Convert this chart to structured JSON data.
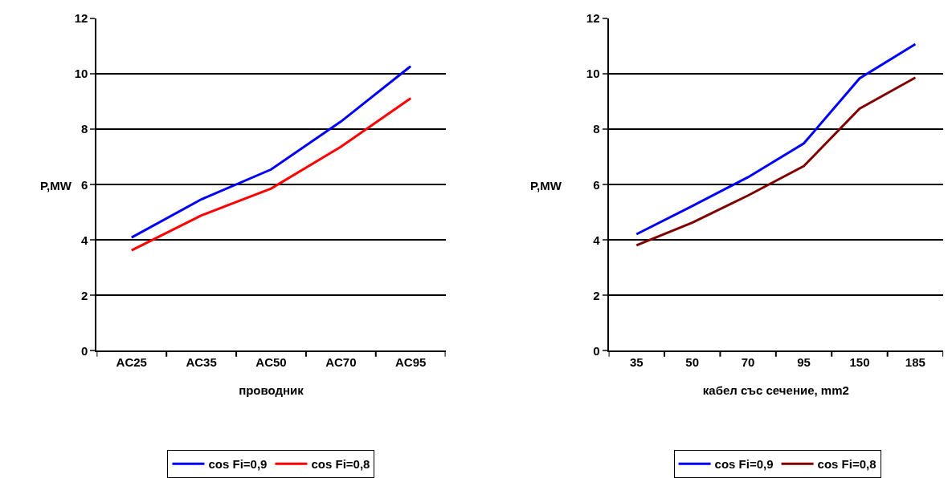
{
  "chart_data": [
    {
      "type": "line",
      "categories": [
        "AC25",
        "AC35",
        "AC50",
        "AC70",
        "AC95"
      ],
      "xlabel": "проводник",
      "ylabel": "P,MW",
      "ylim": [
        0,
        12
      ],
      "yticks": [
        0,
        2,
        4,
        6,
        8,
        10,
        12
      ],
      "grid": "y",
      "legend": "bottom",
      "marker": "none",
      "line_style": "solid",
      "series": [
        {
          "name": "cos Fi=0,9",
          "color": "#0000ff",
          "values": [
            4.09,
            5.47,
            6.55,
            8.28,
            10.28
          ]
        },
        {
          "name": "cos Fi=0,8",
          "color": "#ff0000",
          "values": [
            3.63,
            4.89,
            5.86,
            7.37,
            9.12
          ]
        }
      ]
    },
    {
      "type": "line",
      "categories": [
        "35",
        "50",
        "70",
        "95",
        "150",
        "185"
      ],
      "xlabel": "кабел със сечение, mm2",
      "ylabel": "P,MW",
      "ylim": [
        0,
        12
      ],
      "yticks": [
        0,
        2,
        4,
        6,
        8,
        10,
        12
      ],
      "grid": "y",
      "legend": "bottom",
      "marker": "none",
      "line_style": "solid",
      "series": [
        {
          "name": "cos Fi=0,9",
          "color": "#0000ff",
          "values": [
            4.21,
            5.23,
            6.27,
            7.49,
            9.84,
            11.08
          ]
        },
        {
          "name": "cos Fi=0,8",
          "color": "#800000",
          "values": [
            3.81,
            4.63,
            5.61,
            6.67,
            8.75,
            9.87
          ]
        }
      ]
    }
  ]
}
